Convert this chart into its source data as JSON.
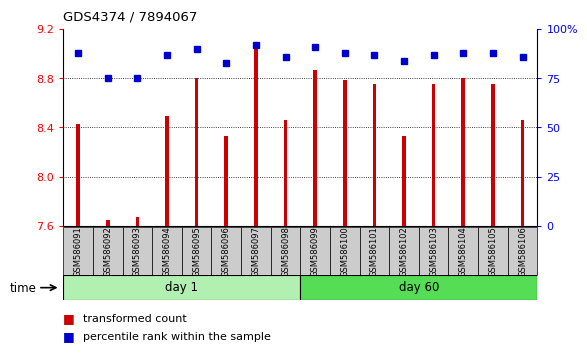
{
  "title": "GDS4374 / 7894067",
  "samples": [
    "GSM586091",
    "GSM586092",
    "GSM586093",
    "GSM586094",
    "GSM586095",
    "GSM586096",
    "GSM586097",
    "GSM586098",
    "GSM586099",
    "GSM586100",
    "GSM586101",
    "GSM586102",
    "GSM586103",
    "GSM586104",
    "GSM586105",
    "GSM586106"
  ],
  "red_values": [
    8.43,
    7.65,
    7.67,
    8.49,
    8.8,
    8.33,
    9.1,
    8.46,
    8.87,
    8.79,
    8.75,
    8.33,
    8.75,
    8.8,
    8.75,
    8.46
  ],
  "blue_values": [
    88,
    75,
    75,
    87,
    90,
    83,
    92,
    86,
    91,
    88,
    87,
    84,
    87,
    88,
    88,
    86
  ],
  "ylim_left": [
    7.6,
    9.2
  ],
  "ylim_right": [
    0,
    100
  ],
  "yticks_left": [
    7.6,
    8.0,
    8.4,
    8.8,
    9.2
  ],
  "yticks_right": [
    0,
    25,
    50,
    75,
    100
  ],
  "ytick_labels_right": [
    "0",
    "25",
    "50",
    "75",
    "100%"
  ],
  "grid_values": [
    8.0,
    8.4,
    8.8
  ],
  "day1_samples": 8,
  "day60_samples": 8,
  "day1_label": "day 1",
  "day60_label": "day 60",
  "day1_color": "#b2f0b2",
  "day60_color": "#55dd55",
  "bar_color": "#cc0000",
  "dot_color": "#0000cc",
  "bar_width": 0.12,
  "bar_bottom": 7.6,
  "legend_items": [
    "transformed count",
    "percentile rank within the sample"
  ],
  "xlabel_time": "time",
  "tick_bg_color": "#cccccc"
}
